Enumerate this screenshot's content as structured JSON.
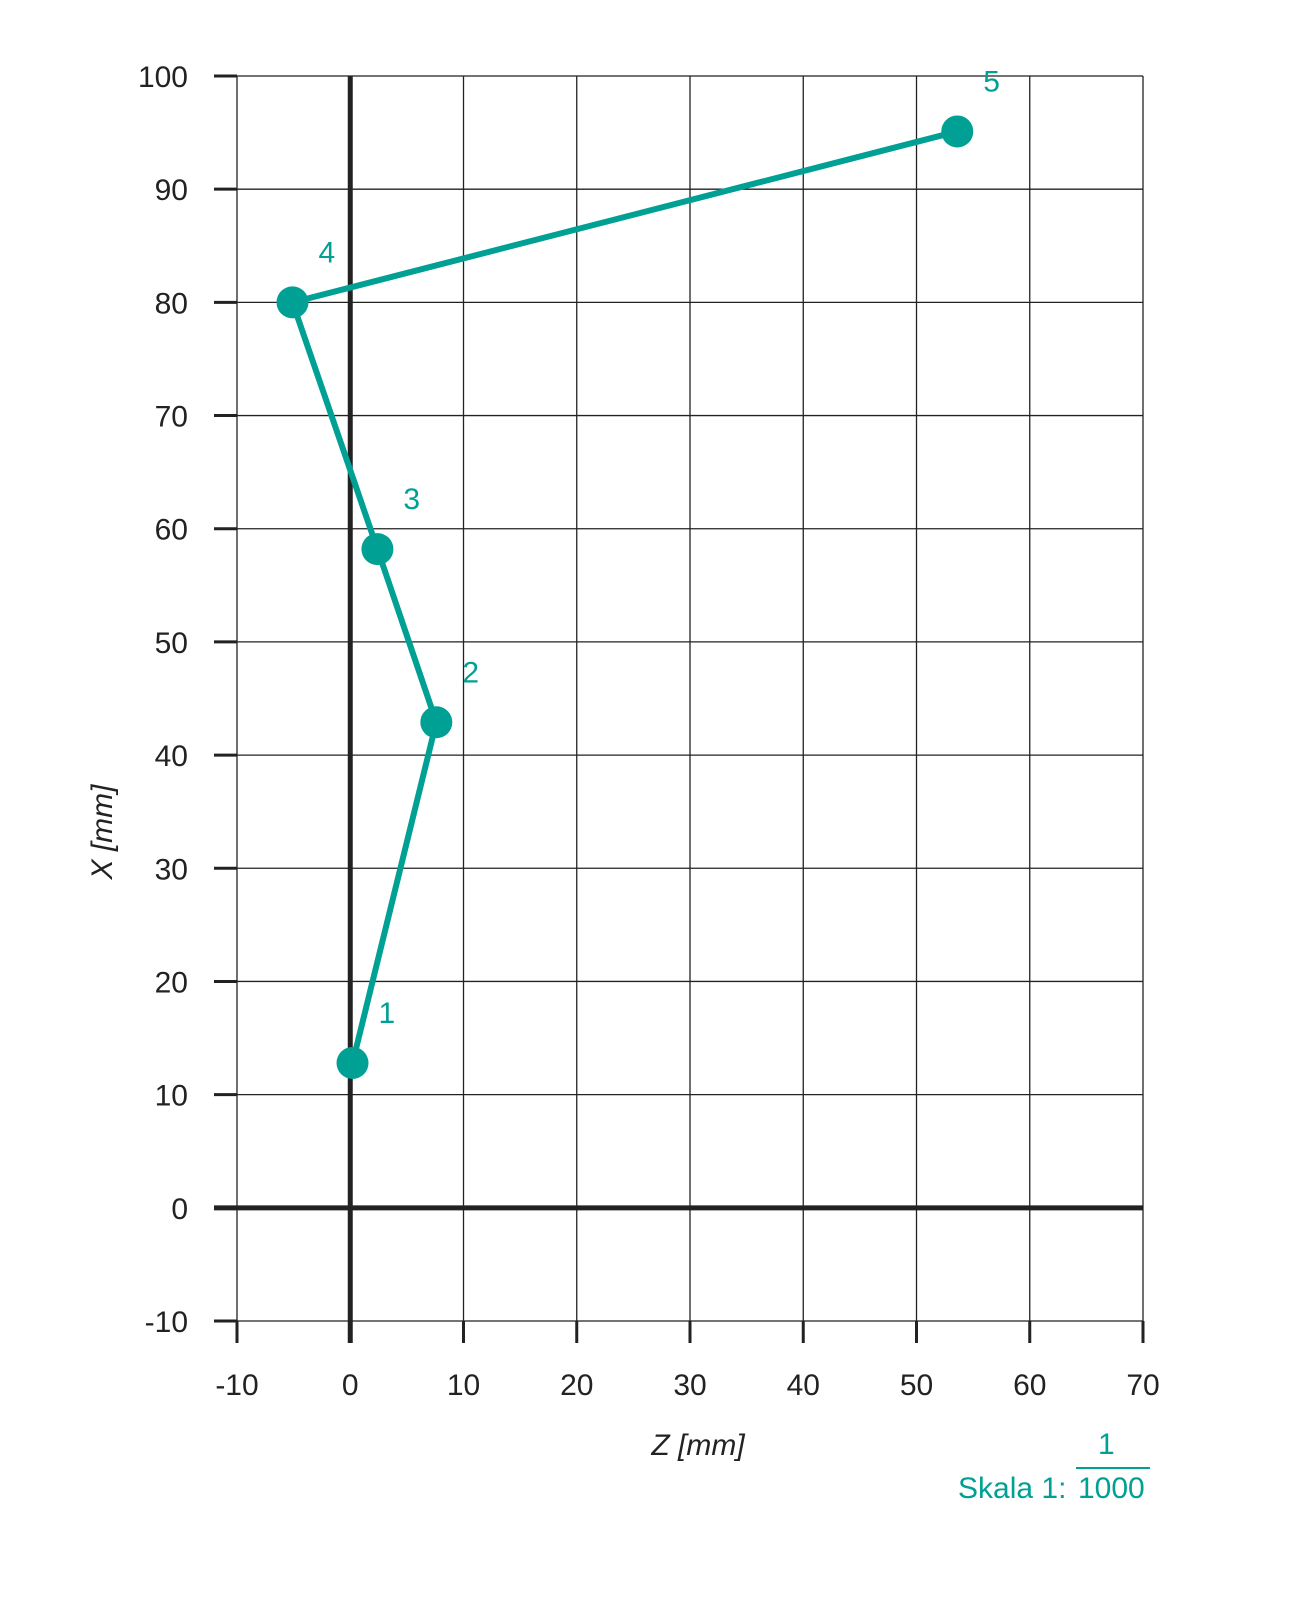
{
  "chart_data": {
    "type": "line",
    "title": "",
    "xlabel": "Z [mm]",
    "ylabel": "X [mm]",
    "xlim": [
      -10,
      70
    ],
    "ylim": [
      -10,
      100
    ],
    "xticks": [
      -10,
      0,
      10,
      20,
      30,
      40,
      50,
      60,
      70
    ],
    "yticks": [
      -10,
      0,
      10,
      20,
      30,
      40,
      50,
      60,
      70,
      80,
      90,
      100
    ],
    "xtick_labels": [
      "-10",
      "0",
      "10",
      "20",
      "30",
      "40",
      "50",
      "60",
      "70"
    ],
    "ytick_labels": [
      "-10",
      "0",
      "10",
      "20",
      "30",
      "40",
      "50",
      "60",
      "70",
      "80",
      "90",
      "100"
    ],
    "grid": true,
    "series": [
      {
        "name": "path",
        "color": "#00a094",
        "points": [
          {
            "label": "1",
            "z": 0.2,
            "x": 12.8
          },
          {
            "label": "2",
            "z": 7.6,
            "x": 42.9
          },
          {
            "label": "3",
            "z": 2.4,
            "x": 58.2
          },
          {
            "label": "4",
            "z": -5.1,
            "x": 80.0
          },
          {
            "label": "5",
            "z": 53.6,
            "x": 95.1
          }
        ]
      }
    ],
    "scale": {
      "prefix": "Skala 1:",
      "numerator": "1",
      "denominator": "1000"
    }
  }
}
